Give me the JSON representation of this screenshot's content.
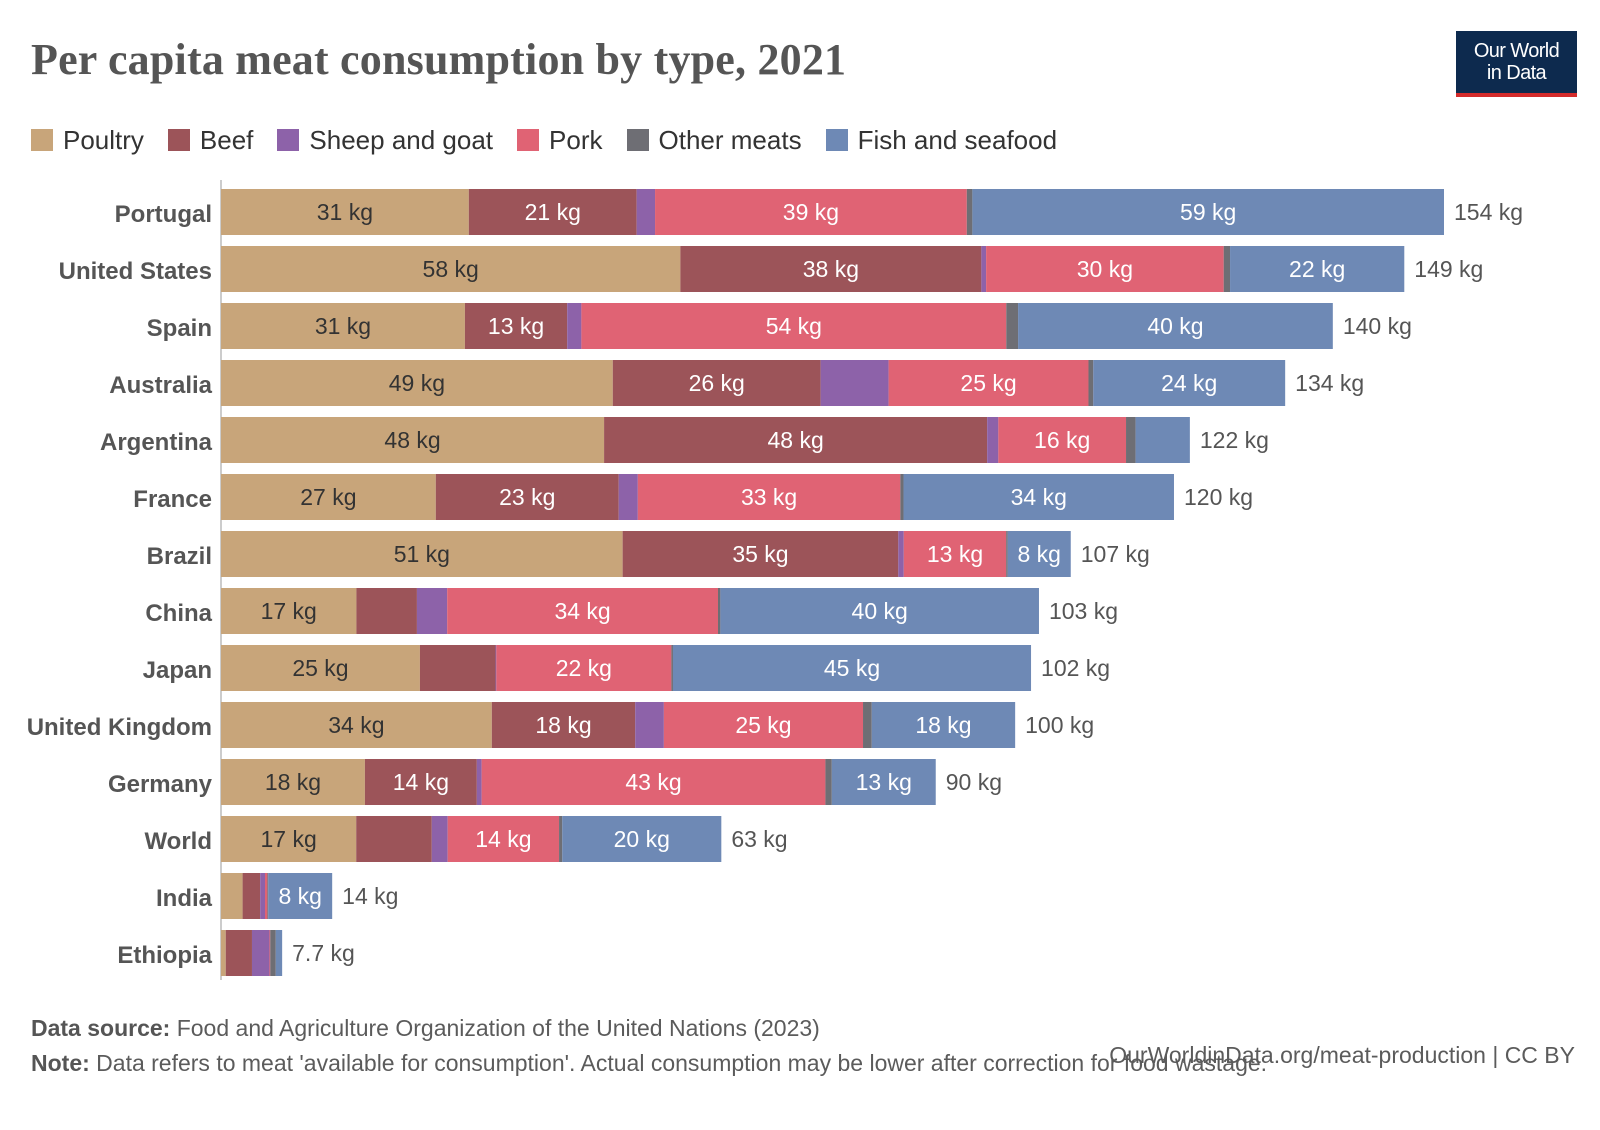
{
  "header": {
    "title": "Per capita meat consumption by type, 2021",
    "logo_line1": "Our World",
    "logo_line2": "in Data"
  },
  "footer": {
    "source_label": "Data source:",
    "source_text": "Food and Agriculture Organization of the United Nations (2023)",
    "url_text": "OurWorldinData.org/meat-production | CC BY",
    "note_label": "Note:",
    "note_text": "Data refers to meat 'available for consumption'. Actual consumption may be lower after correction for food wastage."
  },
  "chart_data": {
    "type": "bar",
    "orientation": "horizontal",
    "stacked": true,
    "title": "Per capita meat consumption by type, 2021",
    "unit": "kg",
    "legend_position": "top",
    "categories": [
      "Portugal",
      "United States",
      "Spain",
      "Australia",
      "Argentina",
      "France",
      "Brazil",
      "China",
      "Japan",
      "United Kingdom",
      "Germany",
      "World",
      "India",
      "Ethiopia"
    ],
    "series": [
      {
        "name": "Poultry",
        "color": "#c8a57a",
        "values": [
          31,
          58,
          31,
          49,
          48,
          27,
          51,
          17,
          25,
          34,
          18,
          17,
          2.7,
          0.6
        ]
      },
      {
        "name": "Beef",
        "color": "#9c5459",
        "values": [
          21,
          38,
          13,
          26,
          48,
          23,
          35,
          7.6,
          9.5,
          18,
          14,
          9.5,
          2.2,
          3.3
        ]
      },
      {
        "name": "Sheep and goat",
        "color": "#8d62a9",
        "values": [
          2.3,
          0.6,
          1.8,
          8.5,
          1.4,
          2.4,
          0.7,
          3.8,
          0.1,
          3.6,
          0.6,
          2,
          0.6,
          2.2
        ]
      },
      {
        "name": "Pork",
        "color": "#e06374",
        "values": [
          39,
          30,
          54,
          25,
          16,
          33,
          13,
          34,
          22,
          25,
          43,
          14,
          0.3,
          0.1
        ]
      },
      {
        "name": "Other meats",
        "color": "#6e6e74",
        "values": [
          0.7,
          0.8,
          1.5,
          0.6,
          1.2,
          0.4,
          0.2,
          0.3,
          0.2,
          1.1,
          0.8,
          0.4,
          0.1,
          0.7
        ]
      },
      {
        "name": "Fish and seafood",
        "color": "#6e89b5",
        "values": [
          59,
          22,
          40,
          24,
          6.8,
          34,
          8,
          40,
          45,
          18,
          13,
          20,
          8,
          0.8
        ]
      }
    ],
    "totals": [
      154,
      149,
      140,
      134,
      122,
      120,
      107,
      103,
      102,
      100,
      90,
      63,
      14,
      7.7
    ],
    "value_labels": [
      [
        "31 kg",
        "21 kg",
        "",
        "39 kg",
        "",
        "59 kg"
      ],
      [
        "58 kg",
        "38 kg",
        "",
        "30 kg",
        "",
        "22 kg"
      ],
      [
        "31 kg",
        "13 kg",
        "",
        "54 kg",
        "",
        "40 kg"
      ],
      [
        "49 kg",
        "26 kg",
        "",
        "25 kg",
        "",
        "24 kg"
      ],
      [
        "48 kg",
        "48 kg",
        "",
        "16 kg",
        "",
        ""
      ],
      [
        "27 kg",
        "23 kg",
        "",
        "33 kg",
        "",
        "34 kg"
      ],
      [
        "51 kg",
        "35 kg",
        "",
        "13 kg",
        "",
        "8 kg"
      ],
      [
        "17 kg",
        "",
        "",
        "34 kg",
        "",
        "40 kg"
      ],
      [
        "25 kg",
        "",
        "",
        "22 kg",
        "",
        "45 kg"
      ],
      [
        "34 kg",
        "18 kg",
        "",
        "25 kg",
        "",
        "18 kg"
      ],
      [
        "18 kg",
        "14 kg",
        "",
        "43 kg",
        "",
        "13 kg"
      ],
      [
        "17 kg",
        "",
        "",
        "14 kg",
        "",
        "20 kg"
      ],
      [
        "",
        "",
        "",
        "",
        "",
        "8 kg"
      ],
      [
        "",
        "",
        "",
        "",
        "",
        ""
      ]
    ],
    "total_labels": [
      "154 kg",
      "149 kg",
      "140 kg",
      "134 kg",
      "122 kg",
      "120 kg",
      "107 kg",
      "103 kg",
      "102 kg",
      "100 kg",
      "90 kg",
      "63 kg",
      "14 kg",
      "7.7 kg"
    ],
    "xlim": [
      0,
      154
    ]
  }
}
